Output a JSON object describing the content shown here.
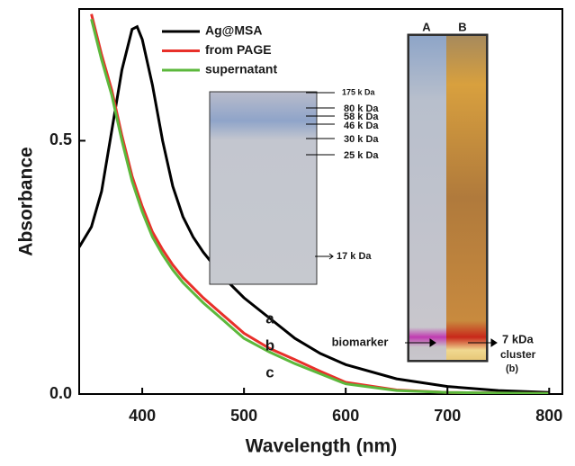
{
  "chart_data": {
    "type": "line",
    "x_label": "Wavelength (nm)",
    "y_label": "Absorbance",
    "x": [
      338,
      350,
      360,
      370,
      380,
      390,
      395,
      400,
      410,
      420,
      430,
      440,
      450,
      460,
      480,
      500,
      525,
      550,
      575,
      600,
      650,
      700,
      750,
      800
    ],
    "series": [
      {
        "name": "Ag@MSA",
        "color": "#000000",
        "values": [
          0.29,
          0.33,
          0.4,
          0.52,
          0.64,
          0.72,
          0.725,
          0.7,
          0.61,
          0.5,
          0.41,
          0.35,
          0.31,
          0.28,
          0.23,
          0.19,
          0.15,
          0.11,
          0.08,
          0.058,
          0.03,
          0.015,
          0.007,
          0.003
        ]
      },
      {
        "name": "from PAGE",
        "color": "#e8302a",
        "values": [
          null,
          0.75,
          0.67,
          0.6,
          0.51,
          0.43,
          0.4,
          0.37,
          0.32,
          0.285,
          0.255,
          0.23,
          0.21,
          0.19,
          0.155,
          0.12,
          0.09,
          0.068,
          0.045,
          0.023,
          0.008,
          0.003,
          0.002,
          0.001
        ]
      },
      {
        "name": "supernatant",
        "color": "#5cb83c",
        "values": [
          null,
          0.74,
          0.66,
          0.59,
          0.5,
          0.42,
          0.39,
          0.36,
          0.31,
          0.275,
          0.245,
          0.22,
          0.2,
          0.18,
          0.145,
          0.11,
          0.083,
          0.06,
          0.04,
          0.02,
          0.007,
          0.003,
          0.002,
          0.001
        ]
      }
    ],
    "xlim": [
      338,
      813
    ],
    "ylim": [
      0,
      0.76
    ],
    "xticks": [
      400,
      500,
      600,
      700,
      800
    ],
    "yticks": [
      {
        "value": 0,
        "label": "0.0"
      },
      {
        "value": 0.5,
        "label": "0.5"
      }
    ],
    "curve_labels": [
      "a",
      "b",
      "c"
    ],
    "annotations": [
      "175 k Da",
      "80 k Da",
      "58 k Da",
      "46 k Da",
      "30 k Da",
      "25 k Da",
      "17 k Da",
      "A",
      "B",
      "biomarker",
      "7 kDa",
      "cluster",
      "(b)"
    ]
  }
}
